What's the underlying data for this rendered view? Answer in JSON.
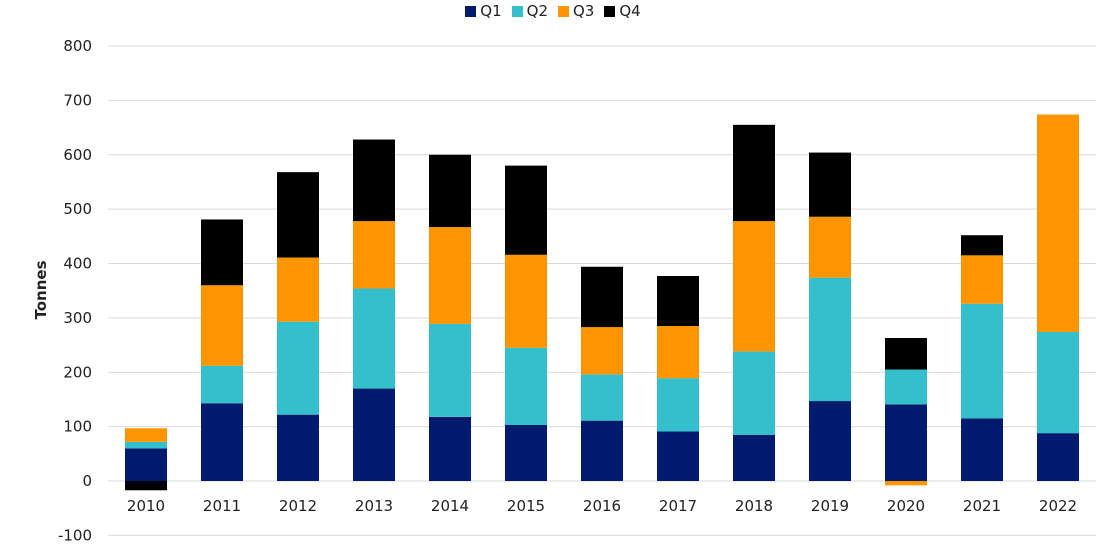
{
  "chart_data": {
    "type": "bar",
    "stacked": true,
    "title": "",
    "xlabel": "",
    "ylabel": "Tonnes",
    "ylim": [
      -100,
      800
    ],
    "yticks": [
      -100,
      0,
      100,
      200,
      300,
      400,
      500,
      600,
      700,
      800
    ],
    "grid": true,
    "legend_position": "top-center",
    "categories": [
      "2010",
      "2011",
      "2012",
      "2013",
      "2014",
      "2015",
      "2016",
      "2017",
      "2018",
      "2019",
      "2020",
      "2021",
      "2022"
    ],
    "series": [
      {
        "name": "Q1",
        "color": "#001a6e",
        "values": [
          60,
          143,
          122,
          170,
          118,
          103,
          111,
          91,
          85,
          147,
          141,
          115,
          88
        ]
      },
      {
        "name": "Q2",
        "color": "#33c0cc",
        "values": [
          12,
          69,
          171,
          184,
          171,
          142,
          85,
          98,
          153,
          227,
          64,
          211,
          186
        ]
      },
      {
        "name": "Q3",
        "color": "#ff9500",
        "values": [
          25,
          148,
          118,
          124,
          178,
          171,
          87,
          96,
          240,
          112,
          -8,
          89,
          400
        ]
      },
      {
        "name": "Q4",
        "color": "#000000",
        "values": [
          -17,
          121,
          157,
          150,
          133,
          164,
          111,
          92,
          177,
          118,
          58,
          37,
          0
        ]
      }
    ]
  }
}
